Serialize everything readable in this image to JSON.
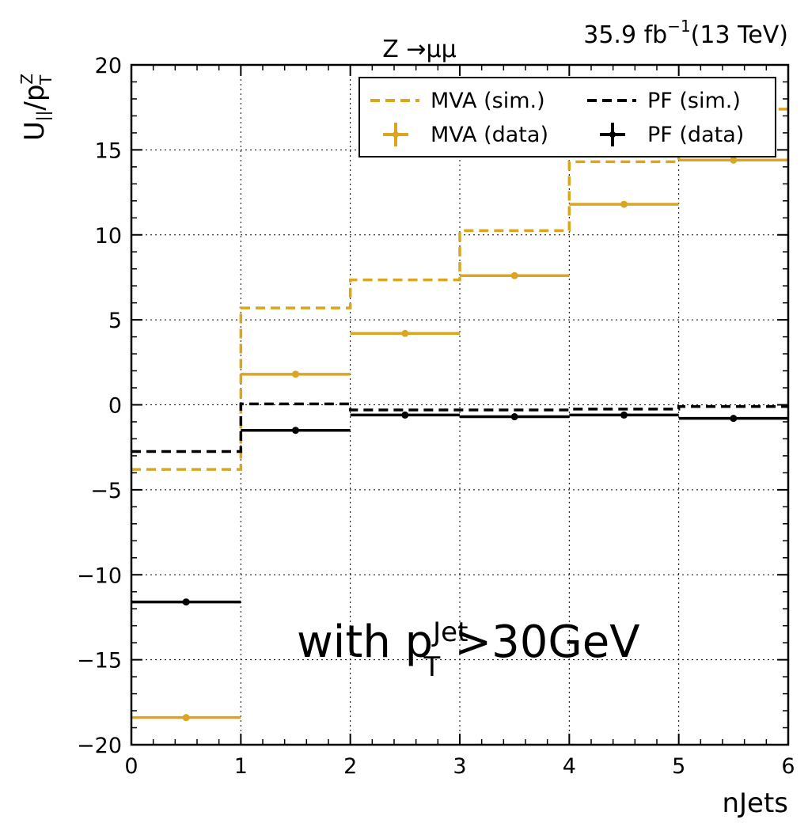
{
  "chart_data": {
    "type": "step",
    "x_edges": [
      0,
      1,
      2,
      3,
      4,
      5,
      6
    ],
    "xlim": [
      0,
      6
    ],
    "ylim": [
      -20,
      20
    ],
    "x_ticks": [
      "0",
      "1",
      "2",
      "3",
      "4",
      "5",
      "6"
    ],
    "y_ticks": [
      "20",
      "15",
      "10",
      "5",
      "0",
      "−5",
      "−10",
      "−15",
      "−20"
    ],
    "y_tick_values": [
      20,
      15,
      10,
      5,
      0,
      -5,
      -10,
      -15,
      -20
    ],
    "grid": true,
    "legend_position": "top-right",
    "xlabel": "nJets",
    "ylabel": {
      "main": "U",
      "sub1": "||",
      "mid": "/p",
      "sup": "Z",
      "sub2": "T"
    },
    "lumi": {
      "main": "35.9 fb",
      "sup": "−1",
      "tail": "(13 TeV)"
    },
    "process": "Z →μμ",
    "annotation": {
      "prefix": "with p",
      "sup": "Jet",
      "sub": "T",
      "suffix": ">30GeV"
    },
    "series": [
      {
        "name": "MVA (sim.)",
        "style": "dashed",
        "color": "#DAA520",
        "values": [
          -3.8,
          5.7,
          7.35,
          10.25,
          14.3,
          17.4
        ]
      },
      {
        "name": "PF (sim.)",
        "style": "dashed",
        "color": "#000000",
        "values": [
          -2.75,
          0.05,
          -0.3,
          -0.3,
          -0.25,
          -0.1
        ]
      },
      {
        "name": "MVA (data)",
        "style": "points",
        "color": "#DAA520",
        "values": [
          -18.4,
          1.8,
          4.2,
          7.6,
          11.8,
          14.4
        ]
      },
      {
        "name": "PF (data)",
        "style": "points",
        "color": "#000000",
        "values": [
          -11.6,
          -1.5,
          -0.6,
          -0.7,
          -0.6,
          -0.8
        ]
      }
    ]
  }
}
